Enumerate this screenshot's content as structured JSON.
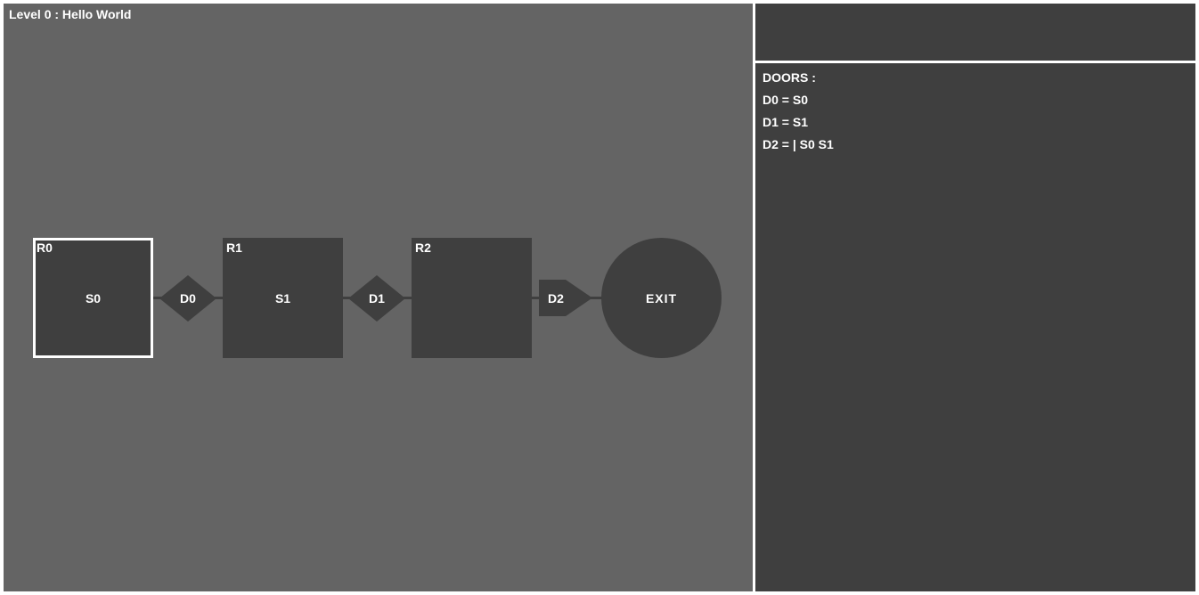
{
  "level": {
    "title": "Level 0 : Hello World"
  },
  "rooms": [
    {
      "label": "R0",
      "switch": "S0",
      "selected": true
    },
    {
      "label": "R1",
      "switch": "S1",
      "selected": false
    },
    {
      "label": "R2",
      "switch": "",
      "selected": false
    }
  ],
  "doors": [
    {
      "label": "D0",
      "shape": "diamond"
    },
    {
      "label": "D1",
      "shape": "diamond"
    },
    {
      "label": "D2",
      "shape": "pentagon"
    }
  ],
  "exit": {
    "label": "EXIT"
  },
  "panel": {
    "title": "DOORS :",
    "lines": [
      "D0 = S0",
      "D1 = S1",
      "D2 = | S0 S1"
    ]
  },
  "colors": {
    "game_background": "#646464",
    "node_fill": "#3f3f3f",
    "panel_background": "#3f3f3f",
    "frame": "#ffffff",
    "text": "#ffffff",
    "selection": "#ffffff"
  }
}
